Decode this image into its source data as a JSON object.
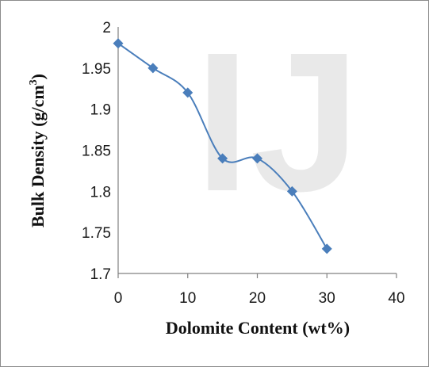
{
  "chart_data": {
    "type": "line",
    "smooth": true,
    "xlabel": "Dolomite Content (wt%)",
    "ylabel_main": "Bulk Density (g/cm",
    "ylabel_sup": "3",
    "ylabel_tail": ")",
    "xlim": [
      0,
      40
    ],
    "ylim": [
      1.7,
      2.0
    ],
    "xticks": [
      "0",
      "10",
      "20",
      "30",
      "40"
    ],
    "yticks": [
      "1.7",
      "1.75",
      "1.8",
      "1.85",
      "1.9",
      "1.95",
      "2"
    ],
    "grid": false,
    "legend": "none",
    "series": [
      {
        "x": [
          0,
          5,
          10,
          15,
          20,
          25,
          30
        ],
        "y": [
          1.98,
          1.95,
          1.92,
          1.84,
          1.84,
          1.8,
          1.73
        ]
      }
    ],
    "colors": {
      "series": "#4a7ebb",
      "axis": "#808080"
    }
  },
  "watermark": {
    "text": "IJ",
    "color": "#e9e9e9"
  }
}
